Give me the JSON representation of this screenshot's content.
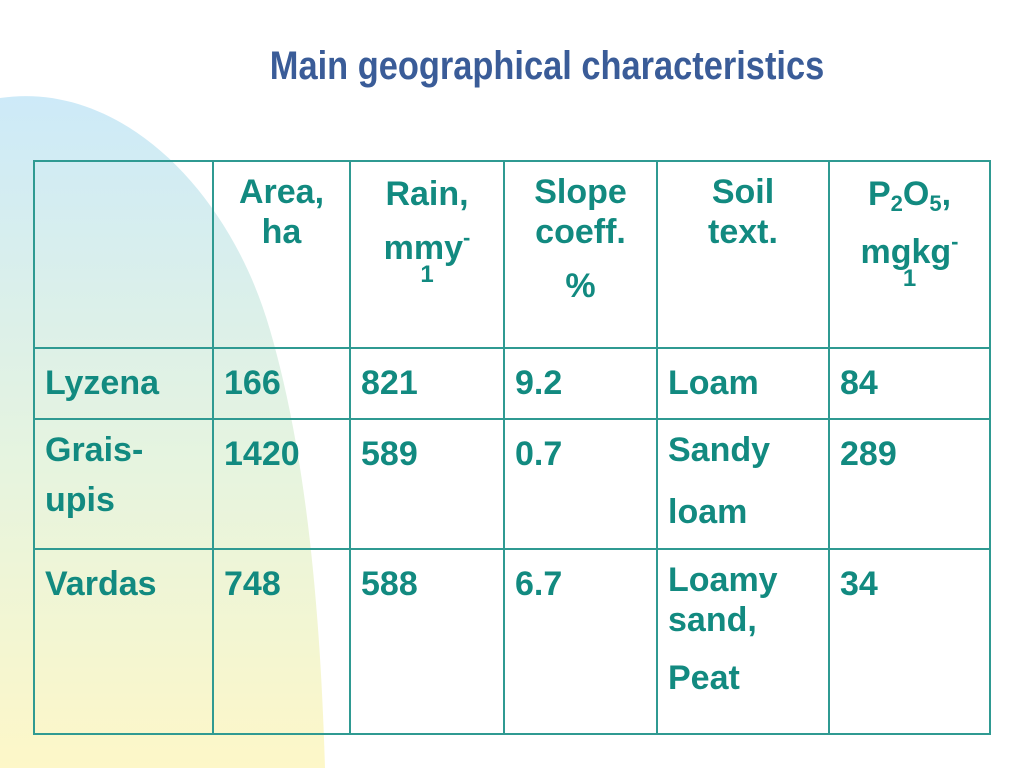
{
  "slide": {
    "title": "Main geographical characteristics",
    "colors": {
      "title": "#3a5c98",
      "text": "#128a80",
      "border": "#2f9a92",
      "decor_blue": "#cfeaf7",
      "decor_yellow": "#fdf6c6"
    }
  },
  "table": {
    "header": {
      "corner": "",
      "area": [
        "Area,",
        "ha"
      ],
      "rain": {
        "line1": "Rain,",
        "line2_base": "mmy",
        "line2_sup": "-",
        "line3": "1"
      },
      "slope": [
        "Slope",
        "coeff.",
        "%"
      ],
      "soil": [
        "Soil",
        "text."
      ],
      "p2o5": {
        "p": "P",
        "sub1": "2",
        "o": "O",
        "sub2": "5",
        "comma": ",",
        "line2_base": "mgkg",
        "line2_sup": "-",
        "line3": "1"
      }
    },
    "rows": [
      {
        "name": [
          "Lyzena"
        ],
        "area": "166",
        "rain": "821",
        "slope": "9.2",
        "soil": [
          "Loam"
        ],
        "p2o5": "84"
      },
      {
        "name": [
          "Grais-",
          "upis"
        ],
        "area": "1420",
        "rain": "589",
        "slope": "0.7",
        "soil": [
          "Sandy",
          "loam"
        ],
        "p2o5": "289"
      },
      {
        "name": [
          "Vardas"
        ],
        "area": "748",
        "rain": "588",
        "slope": "6.7",
        "soil": [
          "Loamy",
          "sand,",
          "Peat"
        ],
        "p2o5": "34"
      }
    ]
  }
}
